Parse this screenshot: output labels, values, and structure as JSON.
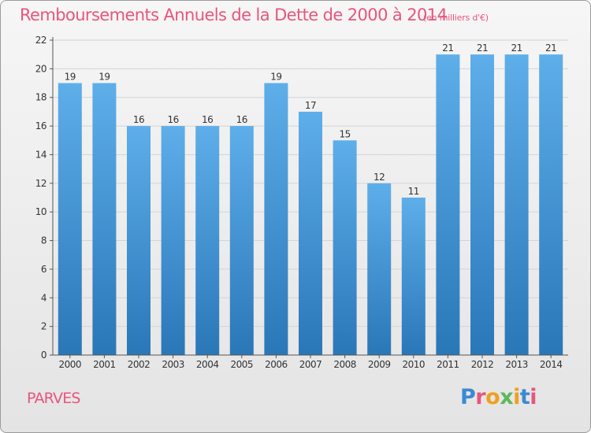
{
  "header": {
    "title": "Remboursements Annuels de la Dette de 2000 à 2014",
    "unit": "(en milliers d'€)"
  },
  "footer": {
    "commune": "PARVES",
    "logo_letters": [
      "P",
      "r",
      "o",
      "x",
      "i",
      "t",
      "i"
    ],
    "logo_colors": [
      "#3a8ad4",
      "#e8557d",
      "#f0a020",
      "#5cb85c",
      "#f0a020",
      "#3a8ad4",
      "#e8557d"
    ]
  },
  "colors": {
    "bar_top": "#5eaeea",
    "bar_bottom": "#2a77b8",
    "title": "#e8557d",
    "axis_text": "#333333",
    "grid": "#d4d4d4"
  },
  "chart_data": {
    "type": "bar",
    "title": "Remboursements Annuels de la Dette de 2000 à 2014",
    "subtitle": "(en milliers d'€)",
    "xlabel": "",
    "ylabel": "",
    "categories": [
      "2000",
      "2001",
      "2002",
      "2003",
      "2004",
      "2005",
      "2006",
      "2007",
      "2008",
      "2009",
      "2010",
      "2011",
      "2012",
      "2013",
      "2014"
    ],
    "values": [
      19,
      19,
      16,
      16,
      16,
      16,
      19,
      17,
      15,
      12,
      11,
      21,
      21,
      21,
      21
    ],
    "ylim": [
      0,
      22
    ],
    "yticks": [
      0,
      2,
      4,
      6,
      8,
      10,
      12,
      14,
      16,
      18,
      20,
      22
    ],
    "grid": true,
    "data_labels": true
  }
}
